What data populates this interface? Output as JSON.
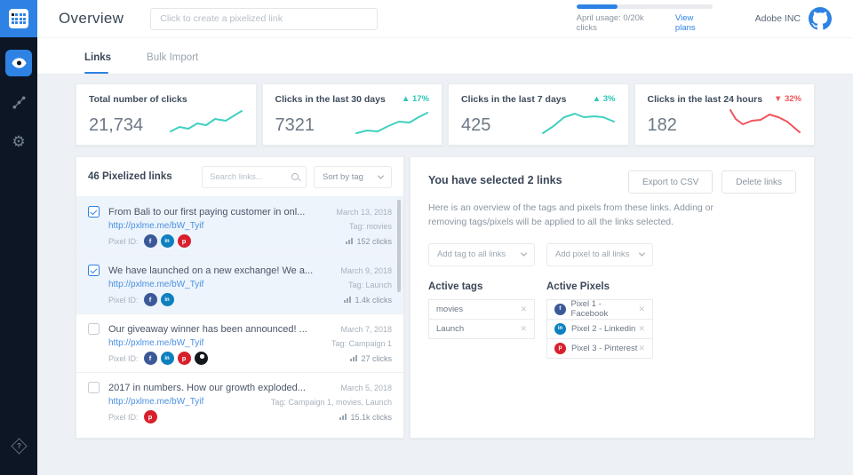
{
  "colors": {
    "accent": "#2e82e4",
    "teal": "#3fd0c0",
    "red": "#f0545c",
    "sidebar_bg": "#0c1624",
    "facebook": "#3b5998",
    "linkedin": "#0e80c0",
    "pinterest": "#d8202c"
  },
  "header": {
    "title": "Overview",
    "create_link_placeholder": "Click to create a pixelized link",
    "usage_text": "April usage: 0/20k clicks",
    "usage_fill_percent": 30,
    "view_plans": "View plans",
    "account_name": "Adobe INC"
  },
  "tabs": [
    {
      "label": "Links",
      "active": true
    },
    {
      "label": "Bulk Import",
      "active": false
    }
  ],
  "stats": [
    {
      "label": "Total number of clicks",
      "value": "21,734",
      "trend": "up"
    },
    {
      "label": "Clicks in the last 30 days",
      "value": "7321",
      "arrow": "▲",
      "delta": "17%",
      "trend": "up"
    },
    {
      "label": "Clicks in the last 7 days",
      "value": "425",
      "arrow": "▲",
      "delta": "3%",
      "trend": "up"
    },
    {
      "label": "Clicks in the last 24 hours",
      "value": "182",
      "arrow": "▼",
      "delta": "32%",
      "trend": "down"
    }
  ],
  "links_panel": {
    "count": "46",
    "title": "Pixelized links",
    "search_placeholder": "Search links...",
    "sort_label": "Sort by tag",
    "pixel_id_label": "Pixel ID:",
    "items": [
      {
        "checked": true,
        "title": "From Bali to our first paying customer in onl...",
        "date": "March 13, 2018",
        "url": "http://pxlme.me/bW_Tyif",
        "tag": "Tag: movies",
        "clicks": "152 clicks",
        "pixels": [
          "facebook",
          "linkedin",
          "pinterest"
        ]
      },
      {
        "checked": true,
        "title": "We have launched on a new exchange! We a...",
        "date": "March 9, 2018",
        "url": "http://pxlme.me/bW_Tyif",
        "tag": "Tag: Launch",
        "clicks": "1.4k clicks",
        "pixels": [
          "facebook",
          "linkedin"
        ]
      },
      {
        "checked": false,
        "title": "Our giveaway winner has been announced! ...",
        "date": "March 7, 2018",
        "url": "http://pxlme.me/bW_Tyif",
        "tag": "Tag: Campaign 1",
        "clicks": "27 clicks",
        "pixels": [
          "facebook",
          "linkedin",
          "pinterest",
          "other"
        ]
      },
      {
        "checked": false,
        "title": "2017 in numbers. How our growth exploded...",
        "date": "March 5, 2018",
        "url": "http://pxlme.me/bW_Tyif",
        "tag": "Tag: Campaign 1, movies, Launch",
        "clicks": "15.1k clicks",
        "pixels": [
          "pinterest"
        ]
      }
    ]
  },
  "selection_panel": {
    "title": "You have selected 2 links",
    "export_button": "Export to CSV",
    "delete_button": "Delete links",
    "description": "Here is an overview of the tags and pixels from these links. Adding or removing tags/pixels will be applied to all the links selected.",
    "add_tag_dropdown": "Add tag to all links",
    "add_pixel_dropdown": "Add pixel to all links",
    "active_tags_heading": "Active tags",
    "active_pixels_heading": "Active Pixels",
    "tags": [
      "movies",
      "Launch"
    ],
    "pixels": [
      {
        "type": "facebook",
        "label": "Pixel 1 - Facebook"
      },
      {
        "type": "linkedin",
        "label": "Pixel 2 - Linkedin"
      },
      {
        "type": "pinterest",
        "label": "Pixel 3 - Pinterest"
      }
    ],
    "remove_icon": "✕"
  }
}
